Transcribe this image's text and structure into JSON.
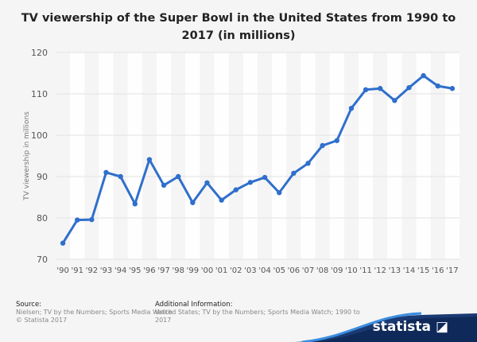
{
  "chart_data": {
    "type": "line",
    "title": "TV viewership of the Super Bowl in the United States from 1990 to 2017 (in millions)",
    "xlabel": "",
    "ylabel": "TV viewership in millions",
    "ylim": [
      70,
      120
    ],
    "yticks": [
      70,
      80,
      90,
      100,
      110,
      120
    ],
    "grid": true,
    "categories": [
      "'90",
      "'91",
      "'92",
      "'93",
      "'94",
      "'95",
      "'96",
      "'97",
      "'98",
      "'99",
      "'00",
      "'01",
      "'02",
      "'03",
      "'04",
      "'05",
      "'06",
      "'07",
      "'08",
      "'09",
      "'10",
      "'11",
      "'12",
      "'13",
      "'14",
      "'15",
      "'16",
      "'17"
    ],
    "values": [
      73.9,
      79.5,
      79.6,
      91.0,
      90.0,
      83.4,
      94.1,
      87.9,
      90.0,
      83.7,
      88.5,
      84.3,
      86.8,
      88.6,
      89.8,
      86.1,
      90.8,
      93.2,
      97.5,
      98.7,
      106.5,
      111.0,
      111.3,
      108.4,
      111.5,
      114.4,
      111.9,
      111.3
    ],
    "line_color": "#2f6fcc"
  },
  "footer": {
    "source_label": "Source:",
    "source_lines": [
      "Nielsen; TV by the Numbers; Sports Media Watch",
      "© Statista 2017"
    ],
    "info_label": "Additional Information:",
    "info_lines": [
      "United States; TV by the Numbers; Sports Media Watch; 1990 to",
      "2017"
    ]
  },
  "logo": "statista"
}
